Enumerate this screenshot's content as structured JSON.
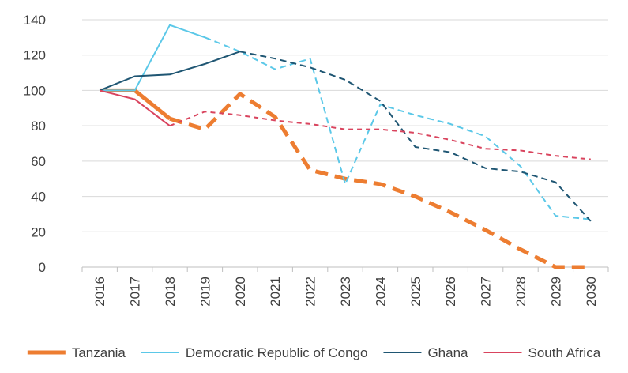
{
  "chart_data": {
    "type": "line",
    "title": "",
    "xlabel": "",
    "ylabel": "",
    "x": [
      "2016",
      "2017",
      "2018",
      "2019",
      "2020",
      "2021",
      "2022",
      "2023",
      "2024",
      "2025",
      "2026",
      "2027",
      "2028",
      "2029",
      "2030"
    ],
    "ylim": [
      0,
      140
    ],
    "yticks": [
      0,
      20,
      40,
      60,
      80,
      100,
      120,
      140
    ],
    "grid": "horizontal",
    "legend_position": "bottom",
    "series": [
      {
        "name": "Tanzania",
        "color": "#ED7D31",
        "style": "solid-then-dashed",
        "dash_from_index": 2,
        "values": [
          100,
          100,
          84,
          78,
          98,
          85,
          55,
          50,
          47,
          40,
          31,
          21,
          10,
          0,
          0
        ]
      },
      {
        "name": "Democratic Republic of Congo",
        "color": "#5BC8E8",
        "style": "solid-then-dashed",
        "dash_from_index": 3,
        "values": [
          100,
          100,
          137,
          130,
          122,
          112,
          118,
          47,
          92,
          86,
          81,
          74,
          57,
          29,
          27
        ]
      },
      {
        "name": "Ghana",
        "color": "#1F5673",
        "style": "solid-then-dashed",
        "dash_from_index": 4,
        "values": [
          100,
          108,
          109,
          115,
          122,
          118,
          113,
          106,
          94,
          68,
          65,
          56,
          54,
          48,
          26
        ]
      },
      {
        "name": "South Africa",
        "color": "#D9445E",
        "style": "solid-then-dashed",
        "dash_from_index": 2,
        "values": [
          100,
          95,
          80,
          88,
          86,
          83,
          81,
          78,
          78,
          76,
          72,
          67,
          66,
          63,
          61
        ]
      }
    ]
  }
}
